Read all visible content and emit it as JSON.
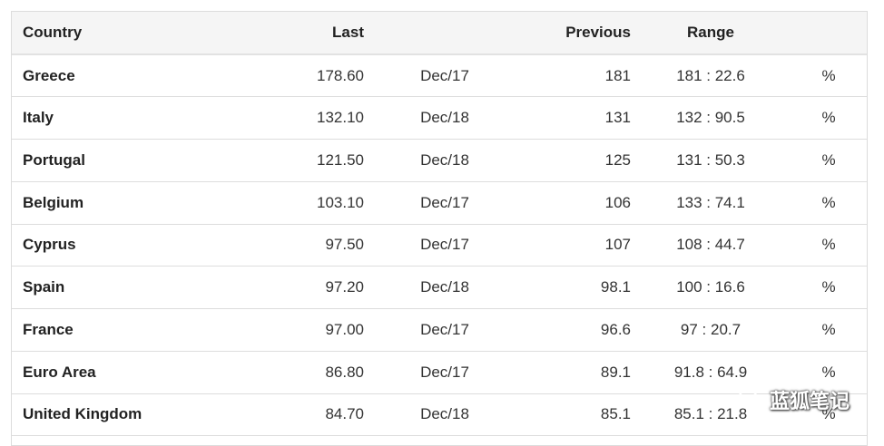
{
  "table": {
    "headers": {
      "country": "Country",
      "last": "Last",
      "date": "",
      "previous": "Previous",
      "range": "Range",
      "unit": ""
    },
    "rows": [
      {
        "country": "Greece",
        "last": "178.60",
        "date": "Dec/17",
        "previous": "181",
        "range": "181 : 22.6",
        "unit": "%"
      },
      {
        "country": "Italy",
        "last": "132.10",
        "date": "Dec/18",
        "previous": "131",
        "range": "132 : 90.5",
        "unit": "%"
      },
      {
        "country": "Portugal",
        "last": "121.50",
        "date": "Dec/18",
        "previous": "125",
        "range": "131 : 50.3",
        "unit": "%"
      },
      {
        "country": "Belgium",
        "last": "103.10",
        "date": "Dec/17",
        "previous": "106",
        "range": "133 : 74.1",
        "unit": "%"
      },
      {
        "country": "Cyprus",
        "last": "97.50",
        "date": "Dec/17",
        "previous": "107",
        "range": "108 : 44.7",
        "unit": "%"
      },
      {
        "country": "Spain",
        "last": "97.20",
        "date": "Dec/18",
        "previous": "98.1",
        "range": "100 : 16.6",
        "unit": "%"
      },
      {
        "country": "France",
        "last": "97.00",
        "date": "Dec/17",
        "previous": "96.6",
        "range": "97 : 20.7",
        "unit": "%"
      },
      {
        "country": "Euro Area",
        "last": "86.80",
        "date": "Dec/17",
        "previous": "89.1",
        "range": "91.8 : 64.9",
        "unit": "%"
      },
      {
        "country": "United Kingdom",
        "last": "84.70",
        "date": "Dec/18",
        "previous": "85.1",
        "range": "85.1 : 21.8",
        "unit": "%"
      }
    ]
  },
  "watermark": {
    "text": "蓝狐笔记",
    "icon": "wechat-icon"
  }
}
